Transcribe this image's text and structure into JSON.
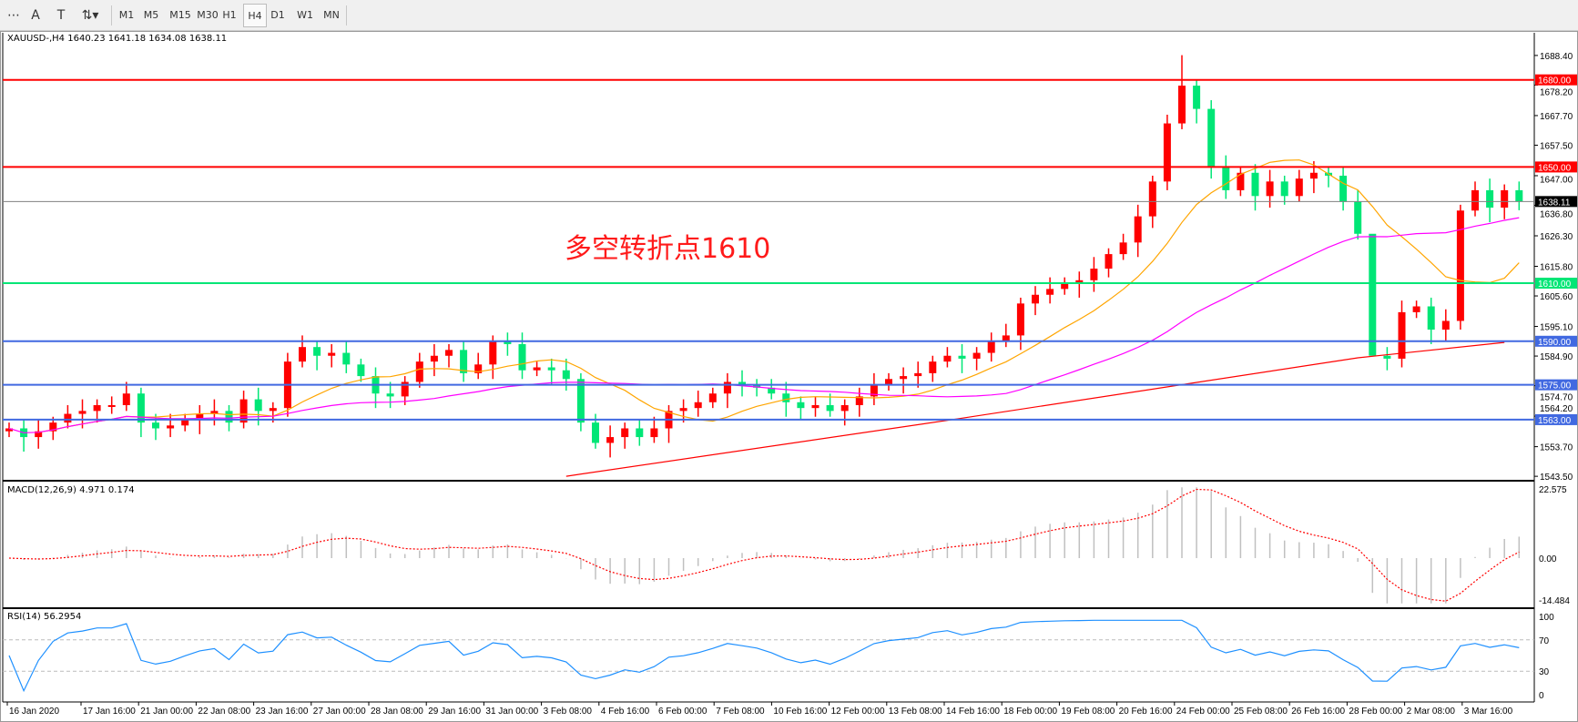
{
  "toolbar": {
    "tools": [
      {
        "name": "period-separators-icon",
        "glyph": "⋯"
      },
      {
        "name": "text-tool-icon",
        "glyph": "A"
      },
      {
        "name": "text-label-tool-icon",
        "glyph": "T"
      },
      {
        "name": "arrows-tool-icon",
        "glyph": "⇅▾"
      }
    ],
    "timeframes": [
      "M1",
      "M5",
      "M15",
      "M30",
      "H1",
      "H4",
      "D1",
      "W1",
      "MN"
    ],
    "active_timeframe": "H4"
  },
  "chart": {
    "title": "XAUUSD-,H4  1640.23 1641.18 1634.08 1638.11",
    "annotation": "多空转折点1610",
    "current_price": "1638.11",
    "price_ticks": [
      "1688.40",
      "1678.20",
      "1667.70",
      "1657.50",
      "1647.00",
      "1636.80",
      "1626.30",
      "1615.80",
      "1605.60",
      "1595.10",
      "1584.90",
      "1574.70",
      "1564.20",
      "1553.70",
      "1543.50"
    ],
    "levels": [
      {
        "price": "1680.00",
        "color": "#ff0000"
      },
      {
        "price": "1650.00",
        "color": "#ff0000"
      },
      {
        "price": "1610.00",
        "color": "#00e676"
      },
      {
        "price": "1590.00",
        "color": "#4169e1"
      },
      {
        "price": "1575.00",
        "color": "#4169e1"
      },
      {
        "price": "1563.00",
        "color": "#4169e1"
      }
    ],
    "date_labels": [
      "16 Jan 2020",
      "17 Jan 16:00",
      "21 Jan 00:00",
      "22 Jan 08:00",
      "23 Jan 16:00",
      "27 Jan 00:00",
      "28 Jan 08:00",
      "29 Jan 16:00",
      "31 Jan 00:00",
      "3 Feb 08:00",
      "4 Feb 16:00",
      "6 Feb 00:00",
      "7 Feb 08:00",
      "10 Feb 16:00",
      "12 Feb 00:00",
      "13 Feb 08:00",
      "14 Feb 16:00",
      "18 Feb 00:00",
      "19 Feb 08:00",
      "20 Feb 16:00",
      "24 Feb 00:00",
      "25 Feb 08:00",
      "26 Feb 16:00",
      "28 Feb 00:00",
      "2 Mar 08:00",
      "3 Mar 16:00"
    ],
    "colors": {
      "up": "#ff0000",
      "down": "#00e676",
      "ma_fast": "#ffa500",
      "ma_mid": "#ff00ff",
      "ma_slow": "#ff0000",
      "rsi": "#1e90ff",
      "macd_hist": "#c0c0c0",
      "macd_signal": "#ff0000",
      "current_line": "#808080"
    }
  },
  "macd": {
    "label": "MACD(12,26,9) 4.971 0.174",
    "ticks": [
      "22.575",
      "0.00",
      "-14.484"
    ],
    "range": [
      -14.484,
      22.575
    ]
  },
  "rsi": {
    "label": "RSI(14) 56.2954",
    "ticks": [
      "100",
      "70",
      "30",
      "0"
    ],
    "levels": [
      70,
      30
    ]
  },
  "chart_data": {
    "type": "candlestick",
    "symbol": "XAUUSD-",
    "timeframe": "H4",
    "ylim": [
      1543.5,
      1693
    ],
    "closes": [
      1560,
      1557,
      1559,
      1562,
      1565,
      1566,
      1568,
      1568,
      1572,
      1562,
      1560,
      1561,
      1563,
      1565,
      1566,
      1562,
      1570,
      1566,
      1567,
      1583,
      1588,
      1585,
      1586,
      1582,
      1578,
      1572,
      1571,
      1576,
      1583,
      1585,
      1587,
      1579,
      1582,
      1590,
      1589,
      1580,
      1581,
      1580,
      1577,
      1562,
      1555,
      1557,
      1560,
      1557,
      1560,
      1566,
      1567,
      1569,
      1572,
      1576,
      1575,
      1574,
      1572,
      1569,
      1567,
      1568,
      1566,
      1568,
      1571,
      1575,
      1577,
      1578,
      1579,
      1583,
      1585,
      1584,
      1586,
      1590,
      1592,
      1603,
      1606,
      1608,
      1610,
      1611,
      1615,
      1620,
      1624,
      1633,
      1645,
      1665,
      1678,
      1670,
      1650,
      1642,
      1648,
      1640,
      1645,
      1640,
      1646,
      1648,
      1647,
      1638,
      1627,
      1585,
      1584,
      1600,
      1602,
      1594,
      1597,
      1635,
      1642,
      1636,
      1642,
      1638.11
    ],
    "slow_ma_points": [
      [
        38,
        1543.5
      ],
      [
        65,
        1563.5
      ],
      [
        92,
        1584.3
      ],
      [
        102,
        1589.6
      ]
    ]
  }
}
